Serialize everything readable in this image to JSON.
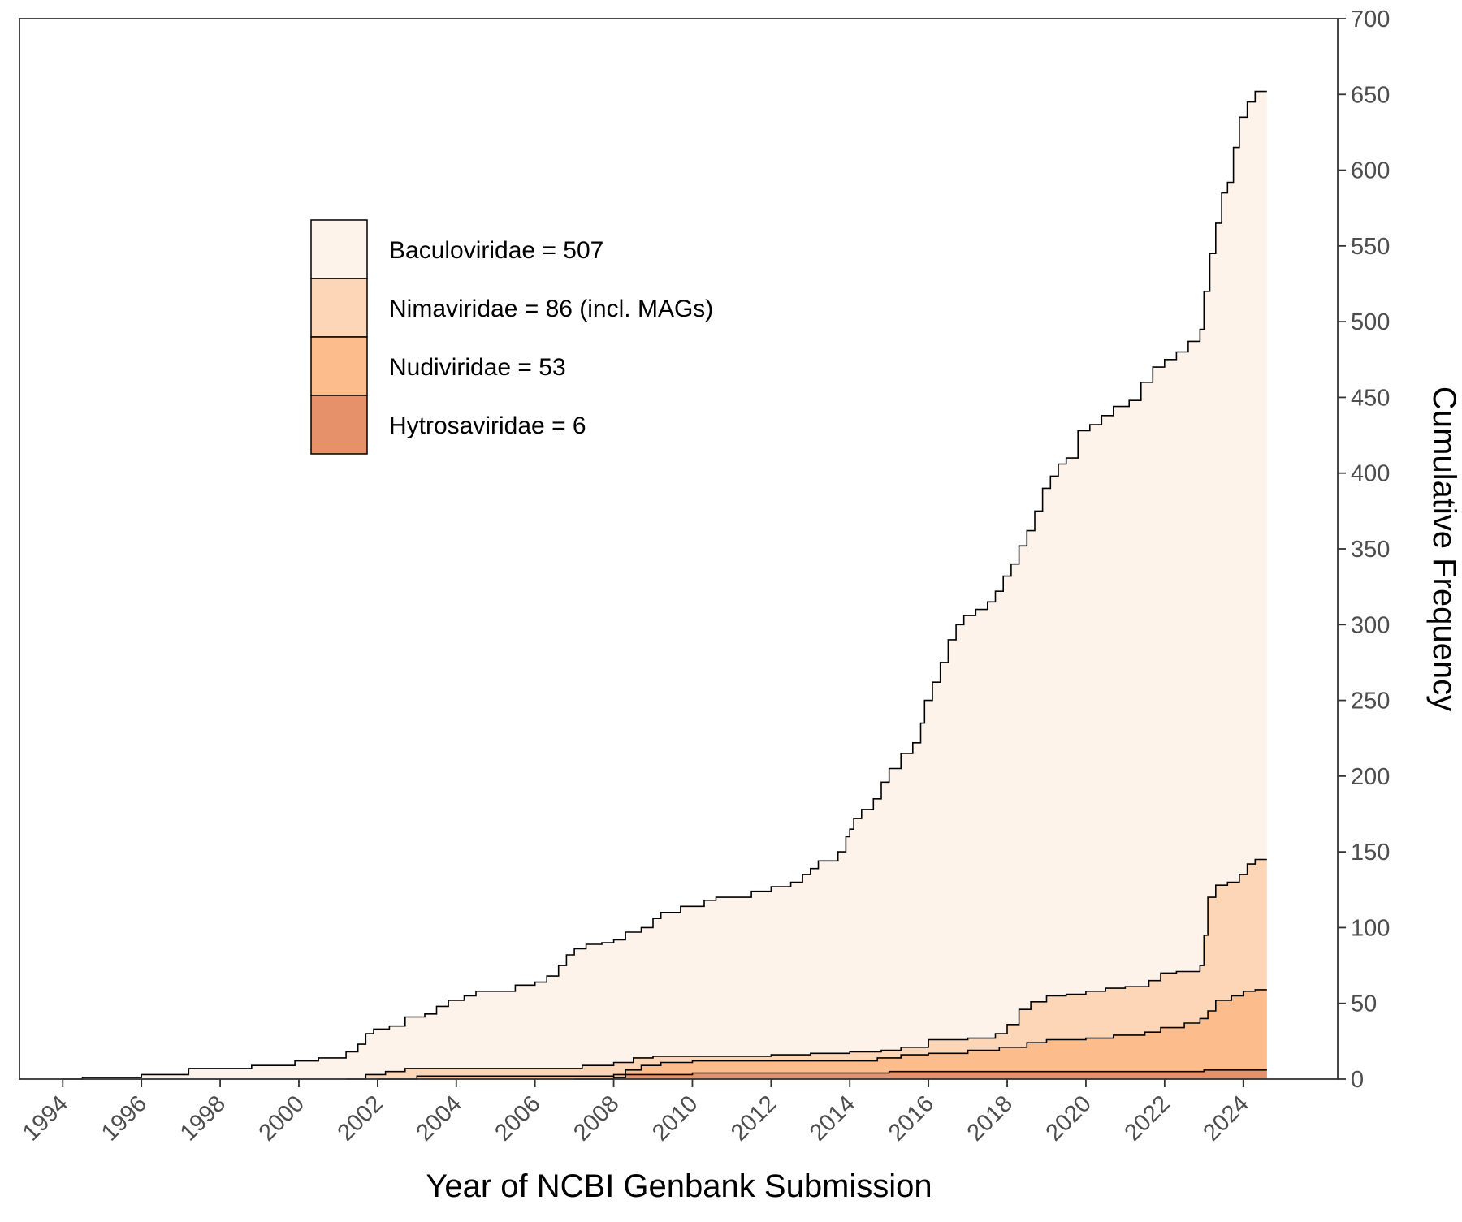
{
  "chart_data": {
    "type": "area",
    "subtype": "stacked cumulative step area",
    "title": "",
    "xlabel": "Year of NCBI Genbank Submission",
    "ylabel": "Cumulative Frequency",
    "y_axis_side": "right",
    "xlim": [
      1992.9,
      2026.4
    ],
    "ylim": [
      0,
      700
    ],
    "x_ticks": [
      1994,
      1996,
      1998,
      2000,
      2002,
      2004,
      2006,
      2008,
      2010,
      2012,
      2014,
      2016,
      2018,
      2020,
      2022,
      2024
    ],
    "x_tick_labels": [
      "1994",
      "1996",
      "1998",
      "2000",
      "2002",
      "2004",
      "2006",
      "2008",
      "2010",
      "2012",
      "2014",
      "2016",
      "2018",
      "2020",
      "2022",
      "2024"
    ],
    "y_ticks": [
      0,
      50,
      100,
      150,
      200,
      250,
      300,
      350,
      400,
      450,
      500,
      550,
      600,
      650,
      700
    ],
    "y_tick_labels": [
      "0",
      "50",
      "100",
      "150",
      "200",
      "250",
      "300",
      "350",
      "400",
      "450",
      "500",
      "550",
      "600",
      "650",
      "700"
    ],
    "grid": false,
    "legend_position": "top-left",
    "series_note": "values are cumulative stacked totals (top edge of each band)",
    "series": [
      {
        "name": "Baculoviridae = 507",
        "color": "#fdf3ea",
        "points": [
          [
            1994.0,
            0
          ],
          [
            1994.5,
            1
          ],
          [
            1996.0,
            3
          ],
          [
            1997.2,
            7
          ],
          [
            1998.8,
            9
          ],
          [
            1999.9,
            12
          ],
          [
            2000.5,
            14
          ],
          [
            2001.2,
            18
          ],
          [
            2001.5,
            23
          ],
          [
            2001.7,
            30
          ],
          [
            2001.9,
            33
          ],
          [
            2002.3,
            35
          ],
          [
            2002.7,
            41
          ],
          [
            2003.2,
            43
          ],
          [
            2003.5,
            48
          ],
          [
            2003.8,
            52
          ],
          [
            2004.2,
            55
          ],
          [
            2004.5,
            58
          ],
          [
            2005.0,
            58
          ],
          [
            2005.5,
            62
          ],
          [
            2006.0,
            64
          ],
          [
            2006.3,
            68
          ],
          [
            2006.6,
            75
          ],
          [
            2006.8,
            82
          ],
          [
            2007.0,
            86
          ],
          [
            2007.3,
            89
          ],
          [
            2007.7,
            90
          ],
          [
            2008.0,
            92
          ],
          [
            2008.3,
            97
          ],
          [
            2008.7,
            100
          ],
          [
            2009.0,
            106
          ],
          [
            2009.2,
            110
          ],
          [
            2009.7,
            114
          ],
          [
            2010.0,
            114
          ],
          [
            2010.3,
            118
          ],
          [
            2010.6,
            120
          ],
          [
            2011.0,
            120
          ],
          [
            2011.5,
            124
          ],
          [
            2012.0,
            127
          ],
          [
            2012.5,
            130
          ],
          [
            2012.8,
            135
          ],
          [
            2013.0,
            139
          ],
          [
            2013.2,
            144
          ],
          [
            2013.7,
            150
          ],
          [
            2013.9,
            160
          ],
          [
            2014.0,
            165
          ],
          [
            2014.1,
            172
          ],
          [
            2014.3,
            178
          ],
          [
            2014.6,
            185
          ],
          [
            2014.8,
            196
          ],
          [
            2015.0,
            205
          ],
          [
            2015.3,
            215
          ],
          [
            2015.6,
            222
          ],
          [
            2015.8,
            235
          ],
          [
            2015.9,
            250
          ],
          [
            2016.1,
            262
          ],
          [
            2016.3,
            275
          ],
          [
            2016.5,
            290
          ],
          [
            2016.7,
            300
          ],
          [
            2016.9,
            306
          ],
          [
            2017.2,
            310
          ],
          [
            2017.5,
            315
          ],
          [
            2017.7,
            322
          ],
          [
            2017.9,
            332
          ],
          [
            2018.1,
            340
          ],
          [
            2018.3,
            352
          ],
          [
            2018.5,
            362
          ],
          [
            2018.7,
            375
          ],
          [
            2018.9,
            390
          ],
          [
            2019.1,
            398
          ],
          [
            2019.3,
            406
          ],
          [
            2019.5,
            410
          ],
          [
            2019.8,
            428
          ],
          [
            2020.1,
            432
          ],
          [
            2020.4,
            438
          ],
          [
            2020.7,
            444
          ],
          [
            2021.1,
            448
          ],
          [
            2021.4,
            460
          ],
          [
            2021.7,
            470
          ],
          [
            2022.0,
            475
          ],
          [
            2022.3,
            480
          ],
          [
            2022.6,
            487
          ],
          [
            2022.9,
            495
          ],
          [
            2023.0,
            520
          ],
          [
            2023.15,
            545
          ],
          [
            2023.3,
            565
          ],
          [
            2023.45,
            585
          ],
          [
            2023.6,
            592
          ],
          [
            2023.75,
            615
          ],
          [
            2023.9,
            635
          ],
          [
            2024.1,
            645
          ],
          [
            2024.3,
            652
          ],
          [
            2024.6,
            652
          ]
        ]
      },
      {
        "name": "Nimaviridae = 86 (incl. MAGs)",
        "color": "#fdd6b8",
        "points": [
          [
            2001.2,
            0
          ],
          [
            2001.7,
            3
          ],
          [
            2002.2,
            5
          ],
          [
            2002.7,
            7
          ],
          [
            2004.0,
            7
          ],
          [
            2006.0,
            7
          ],
          [
            2007.2,
            9
          ],
          [
            2008.0,
            11
          ],
          [
            2008.5,
            14
          ],
          [
            2009.0,
            15
          ],
          [
            2010.0,
            15
          ],
          [
            2011.0,
            15
          ],
          [
            2012.0,
            16
          ],
          [
            2013.0,
            17
          ],
          [
            2014.0,
            18
          ],
          [
            2014.8,
            19
          ],
          [
            2015.3,
            21
          ],
          [
            2016.0,
            26
          ],
          [
            2017.0,
            27
          ],
          [
            2017.7,
            30
          ],
          [
            2018.0,
            36
          ],
          [
            2018.3,
            46
          ],
          [
            2018.6,
            51
          ],
          [
            2019.0,
            55
          ],
          [
            2019.5,
            56
          ],
          [
            2020.0,
            58
          ],
          [
            2020.5,
            60
          ],
          [
            2021.0,
            61
          ],
          [
            2021.6,
            65
          ],
          [
            2021.9,
            70
          ],
          [
            2022.3,
            71
          ],
          [
            2022.9,
            75
          ],
          [
            2023.0,
            95
          ],
          [
            2023.1,
            120
          ],
          [
            2023.3,
            128
          ],
          [
            2023.6,
            130
          ],
          [
            2023.9,
            135
          ],
          [
            2024.1,
            142
          ],
          [
            2024.3,
            145
          ],
          [
            2024.6,
            145
          ]
        ]
      },
      {
        "name": "Nudiviridae = 53",
        "color": "#fcbc8b",
        "points": [
          [
            2002.0,
            0
          ],
          [
            2003.0,
            2
          ],
          [
            2006.0,
            2
          ],
          [
            2008.0,
            3
          ],
          [
            2008.3,
            6
          ],
          [
            2008.7,
            9
          ],
          [
            2009.2,
            11
          ],
          [
            2010.0,
            12
          ],
          [
            2011.0,
            12
          ],
          [
            2012.0,
            12
          ],
          [
            2013.0,
            12
          ],
          [
            2014.0,
            12
          ],
          [
            2014.7,
            14
          ],
          [
            2015.3,
            16
          ],
          [
            2016.0,
            17
          ],
          [
            2017.0,
            19
          ],
          [
            2017.8,
            21
          ],
          [
            2018.5,
            24
          ],
          [
            2019.0,
            26
          ],
          [
            2020.0,
            27
          ],
          [
            2020.7,
            29
          ],
          [
            2021.5,
            31
          ],
          [
            2021.9,
            34
          ],
          [
            2022.5,
            37
          ],
          [
            2022.9,
            40
          ],
          [
            2023.1,
            45
          ],
          [
            2023.3,
            52
          ],
          [
            2023.7,
            55
          ],
          [
            2024.0,
            58
          ],
          [
            2024.3,
            59
          ],
          [
            2024.6,
            59
          ]
        ]
      },
      {
        "name": "Hytrosaviridae = 6",
        "color": "#e69169",
        "points": [
          [
            2007.0,
            0
          ],
          [
            2008.0,
            1
          ],
          [
            2008.3,
            3
          ],
          [
            2010.0,
            4
          ],
          [
            2012.0,
            4
          ],
          [
            2014.0,
            4
          ],
          [
            2015.0,
            5
          ],
          [
            2016.0,
            5
          ],
          [
            2018.0,
            5
          ],
          [
            2020.0,
            5
          ],
          [
            2022.0,
            5
          ],
          [
            2023.0,
            6
          ],
          [
            2024.6,
            6
          ]
        ]
      }
    ]
  }
}
